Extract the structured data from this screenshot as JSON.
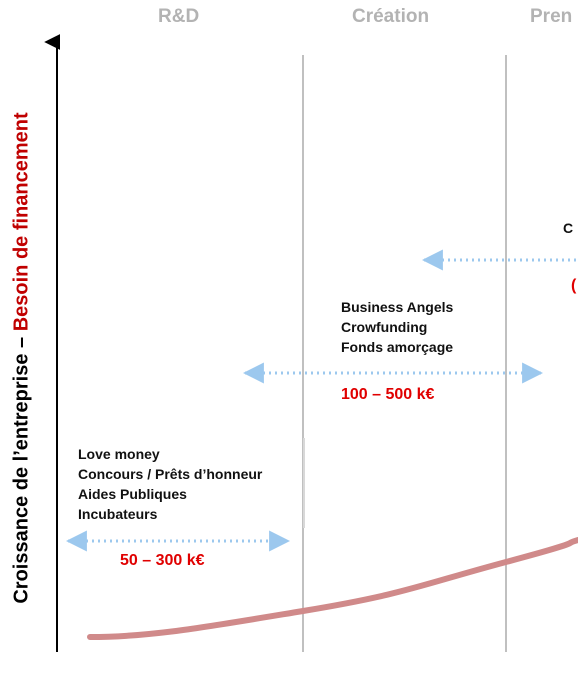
{
  "phases": [
    {
      "label": "R&D"
    },
    {
      "label": "Création"
    },
    {
      "label": "Pren"
    }
  ],
  "y_axis": {
    "label_black": "Croissance de l’entreprise – ",
    "label_red": "Besoin de financement"
  },
  "funding_blocks": [
    {
      "lines": [
        "Love money",
        "Concours / Prêts d’honneur",
        "Aides Publiques",
        "Incubateurs"
      ],
      "amount": "50 – 300 k€"
    },
    {
      "lines": [
        "Business Angels",
        "Crowfunding",
        "Fonds amorçage"
      ],
      "amount": "100 – 500 k€"
    },
    {
      "lines": [
        "C"
      ],
      "amount": "("
    }
  ],
  "colors": {
    "curve": "#d08a8a",
    "arrow": "#9cc8ee",
    "amount": "#e00000",
    "phase": "#b3b3b3",
    "divider": "#c0c0c0"
  }
}
